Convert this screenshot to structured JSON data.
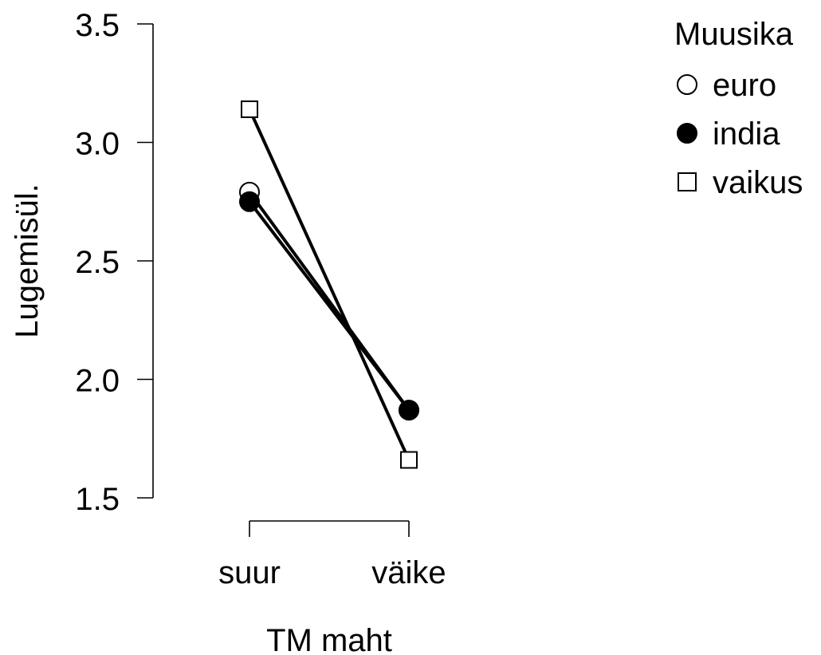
{
  "chart_data": {
    "type": "line",
    "title": "",
    "xlabel": "TM maht",
    "ylabel": "Lugemisül.",
    "categories": [
      "suur",
      "väike"
    ],
    "y_ticks": [
      "1.5",
      "2.0",
      "2.5",
      "3.0",
      "3.5"
    ],
    "y_tick_values": [
      1.5,
      2.0,
      2.5,
      3.0,
      3.5
    ],
    "ylim": [
      1.5,
      3.5
    ],
    "grid": false,
    "legend": {
      "title": "Muusika",
      "position": "top-right",
      "entries": [
        {
          "label": "euro",
          "marker": "open-circle"
        },
        {
          "label": "india",
          "marker": "filled-circle"
        },
        {
          "label": "vaikus",
          "marker": "open-square"
        }
      ]
    },
    "series": [
      {
        "name": "euro",
        "marker": "open-circle",
        "values": [
          2.79,
          1.87
        ]
      },
      {
        "name": "india",
        "marker": "filled-circle",
        "values": [
          2.75,
          1.87
        ]
      },
      {
        "name": "vaikus",
        "marker": "open-square",
        "values": [
          3.14,
          1.66
        ]
      }
    ],
    "colors": {
      "line": "#000000",
      "marker_fill_open": "#ffffff",
      "marker_fill_solid": "#000000"
    }
  }
}
